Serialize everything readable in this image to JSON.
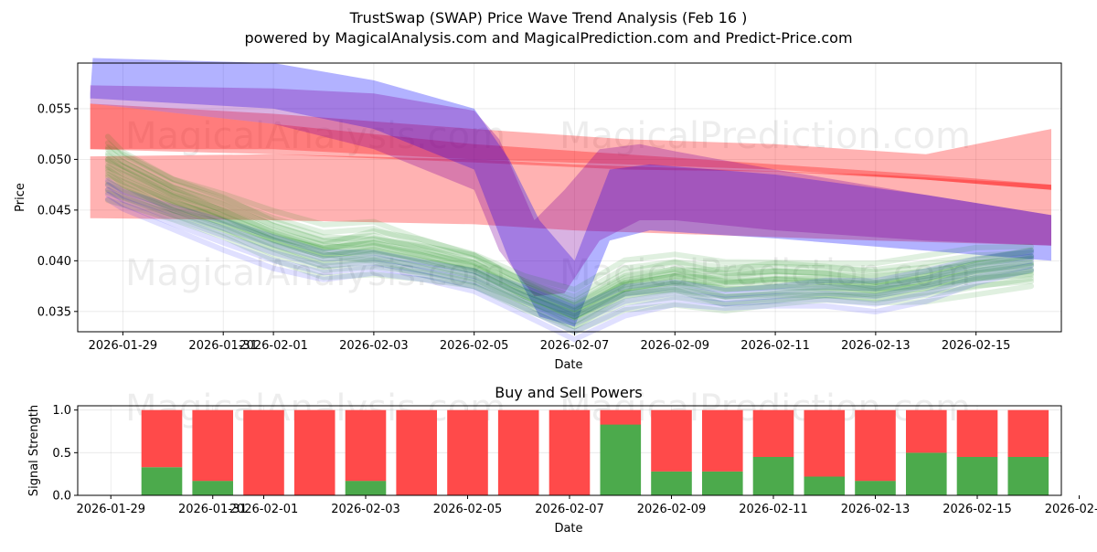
{
  "title": "TrustSwap (SWAP) Price Wave Trend Analysis (Feb 16 )",
  "subtitle": "powered by MagicalAnalysis.com and MagicalPrediction.com and Predict-Price.com",
  "watermarks": [
    "MagicalAnalysis.com",
    "MagicalPrediction.com"
  ],
  "colors": {
    "red": "#ff0000",
    "blue": "#0000ff",
    "green": "#008000",
    "buy": "#4caa4c",
    "sell": "#ff4a4a"
  },
  "chart_data": [
    {
      "type": "area",
      "name": "price-wave-chart",
      "xlabel": "Date",
      "ylabel": "Price",
      "xlim": [
        -0.9,
        18.7
      ],
      "ylim": [
        0.033,
        0.0595
      ],
      "xticks": [
        {
          "x": 0,
          "label": "2026-01-29"
        },
        {
          "x": 2,
          "label": "2026-01-31"
        },
        {
          "x": 3,
          "label": "2026-02-01"
        },
        {
          "x": 5,
          "label": "2026-02-03"
        },
        {
          "x": 7,
          "label": "2026-02-05"
        },
        {
          "x": 9,
          "label": "2026-02-07"
        },
        {
          "x": 11,
          "label": "2026-02-09"
        },
        {
          "x": 13,
          "label": "2026-02-11"
        },
        {
          "x": 15,
          "label": "2026-02-13"
        },
        {
          "x": 17,
          "label": "2026-02-15"
        }
      ],
      "yticks": [
        {
          "y": 0.035,
          "label": "0.035"
        },
        {
          "y": 0.04,
          "label": "0.040"
        },
        {
          "y": 0.045,
          "label": "0.045"
        },
        {
          "y": 0.05,
          "label": "0.050"
        },
        {
          "y": 0.055,
          "label": "0.055"
        }
      ],
      "bands": [
        {
          "name": "red-upper-band",
          "color": "red",
          "x": [
            -0.65,
            3,
            7,
            10,
            13,
            16,
            18.5
          ],
          "upper": [
            0.0555,
            0.0535,
            0.0515,
            0.0505,
            0.0495,
            0.0485,
            0.0475
          ],
          "lower": [
            0.051,
            0.0505,
            0.0497,
            0.049,
            0.0488,
            0.048,
            0.047
          ]
        },
        {
          "name": "red-top-band",
          "color": "red",
          "x": [
            -0.65,
            3,
            7,
            10,
            13,
            16,
            18.5
          ],
          "upper": [
            0.0555,
            0.0545,
            0.053,
            0.052,
            0.0515,
            0.0505,
            0.053
          ],
          "lower": [
            0.051,
            0.051,
            0.05,
            0.0495,
            0.049,
            0.048,
            0.047
          ]
        },
        {
          "name": "red-lower-band",
          "color": "red",
          "x": [
            -0.65,
            3,
            7,
            9,
            12,
            15,
            18.5
          ],
          "upper": [
            0.0503,
            0.0505,
            0.05,
            0.0495,
            0.049,
            0.0485,
            0.0475
          ],
          "lower": [
            0.0442,
            0.044,
            0.0436,
            0.043,
            0.0425,
            0.042,
            0.0415
          ]
        },
        {
          "name": "blue-band",
          "color": "blue",
          "x": [
            -0.65,
            -0.6,
            3,
            5,
            7,
            7.7,
            8.3,
            9,
            9.7,
            10.5,
            13,
            16,
            18.5
          ],
          "upper": [
            0.0565,
            0.06,
            0.0595,
            0.0578,
            0.055,
            0.05,
            0.044,
            0.04,
            0.049,
            0.0495,
            0.0485,
            0.0465,
            0.0445
          ],
          "lower": [
            0.056,
            0.056,
            0.055,
            0.053,
            0.049,
            0.04,
            0.0345,
            0.0335,
            0.042,
            0.043,
            0.0422,
            0.041,
            0.04
          ]
        },
        {
          "name": "purple-band",
          "color": "purple",
          "x": [
            -0.65,
            3,
            5,
            7,
            7.5,
            8.2,
            8.8,
            9.5,
            10.3,
            11,
            13,
            16,
            18.5
          ],
          "upper": [
            0.0573,
            0.057,
            0.0565,
            0.0548,
            0.052,
            0.044,
            0.047,
            0.051,
            0.0515,
            0.0508,
            0.049,
            0.0465,
            0.0445
          ],
          "lower": [
            0.0555,
            0.0535,
            0.051,
            0.047,
            0.041,
            0.0365,
            0.0368,
            0.042,
            0.044,
            0.044,
            0.043,
            0.042,
            0.0415
          ]
        }
      ],
      "series": [
        {
          "name": "wave-green-1",
          "color": "green",
          "x": [
            -0.3,
            0,
            1,
            2,
            3,
            4,
            5,
            6,
            7,
            8,
            9,
            10,
            11,
            12,
            13,
            14,
            15,
            16,
            17,
            18.1
          ],
          "values": [
            0.05,
            0.049,
            0.0465,
            0.045,
            0.043,
            0.0415,
            0.041,
            0.04,
            0.039,
            0.0365,
            0.0345,
            0.0372,
            0.038,
            0.0378,
            0.0382,
            0.038,
            0.0378,
            0.0385,
            0.0392,
            0.0398
          ]
        },
        {
          "name": "wave-green-2",
          "color": "green",
          "x": [
            -0.3,
            0,
            1,
            2,
            3,
            4,
            5,
            6,
            7,
            8,
            9,
            10,
            11,
            12,
            13,
            14,
            15,
            16,
            17,
            18.1
          ],
          "values": [
            0.0485,
            0.0478,
            0.0458,
            0.044,
            0.042,
            0.0405,
            0.0415,
            0.0405,
            0.0392,
            0.037,
            0.0352,
            0.0378,
            0.0385,
            0.0372,
            0.0375,
            0.0377,
            0.037,
            0.0378,
            0.0388,
            0.0395
          ]
        },
        {
          "name": "wave-green-3",
          "color": "green",
          "x": [
            -0.3,
            0,
            1,
            2,
            3,
            4,
            5,
            6,
            7,
            8,
            9,
            10,
            11,
            12,
            13,
            14,
            15,
            16,
            17,
            18.1
          ],
          "values": [
            0.0475,
            0.0468,
            0.045,
            0.0432,
            0.0412,
            0.0398,
            0.0402,
            0.0395,
            0.0385,
            0.0362,
            0.034,
            0.0365,
            0.0372,
            0.0365,
            0.0368,
            0.037,
            0.0368,
            0.0372,
            0.0382,
            0.039
          ]
        },
        {
          "name": "wave-green-4",
          "color": "green",
          "x": [
            -0.3,
            0,
            1,
            2,
            3,
            4,
            5,
            6,
            7,
            8,
            9,
            10,
            11,
            12,
            13,
            14,
            15,
            16,
            17,
            18.1
          ],
          "values": [
            0.051,
            0.0498,
            0.0472,
            0.0455,
            0.0435,
            0.042,
            0.0425,
            0.041,
            0.0398,
            0.0375,
            0.0358,
            0.0385,
            0.0392,
            0.0388,
            0.039,
            0.0388,
            0.0385,
            0.039,
            0.0398,
            0.0402
          ]
        },
        {
          "name": "wave-blue-1",
          "color": "blue",
          "x": [
            -0.3,
            0,
            1,
            2,
            3,
            4,
            5,
            6,
            7,
            8,
            9,
            10,
            11,
            12,
            13,
            14,
            15,
            16,
            17,
            18.1
          ],
          "values": [
            0.047,
            0.046,
            0.0442,
            0.0425,
            0.0408,
            0.0395,
            0.0398,
            0.039,
            0.038,
            0.036,
            0.0338,
            0.036,
            0.0368,
            0.0362,
            0.0365,
            0.0368,
            0.0365,
            0.0375,
            0.039,
            0.04
          ]
        }
      ]
    },
    {
      "type": "bar",
      "name": "buy-sell-chart",
      "title": "Buy and Sell Powers",
      "xlabel": "Date",
      "ylabel": "Signal Strength",
      "xlim": [
        -0.65,
        18.65
      ],
      "ylim": [
        0,
        1.05
      ],
      "xticks": [
        {
          "x": 0,
          "label": "2026-01-29"
        },
        {
          "x": 2,
          "label": "2026-01-31"
        },
        {
          "x": 3,
          "label": "2026-02-01"
        },
        {
          "x": 5,
          "label": "2026-02-03"
        },
        {
          "x": 7,
          "label": "2026-02-05"
        },
        {
          "x": 9,
          "label": "2026-02-07"
        },
        {
          "x": 11,
          "label": "2026-02-09"
        },
        {
          "x": 13,
          "label": "2026-02-11"
        },
        {
          "x": 15,
          "label": "2026-02-13"
        },
        {
          "x": 17,
          "label": "2026-02-15"
        },
        {
          "x": 19,
          "label": "2026-02-17"
        }
      ],
      "yticks": [
        {
          "y": 0,
          "label": "0.0"
        },
        {
          "y": 0.5,
          "label": "0.5"
        },
        {
          "y": 1,
          "label": "1.0"
        }
      ],
      "categories": [
        "2026-01-30",
        "2026-01-31",
        "2026-02-01",
        "2026-02-02",
        "2026-02-03",
        "2026-02-04",
        "2026-02-05",
        "2026-02-06",
        "2026-02-07",
        "2026-02-08",
        "2026-02-09",
        "2026-02-10",
        "2026-02-11",
        "2026-02-12",
        "2026-02-13",
        "2026-02-14",
        "2026-02-15",
        "2026-02-16"
      ],
      "x": [
        1,
        2,
        3,
        4,
        5,
        6,
        7,
        8,
        9,
        10,
        11,
        12,
        13,
        14,
        15,
        16,
        17,
        18
      ],
      "series": [
        {
          "name": "Buy",
          "color": "buy",
          "values": [
            0.33,
            0.17,
            0,
            0,
            0.17,
            0,
            0,
            0,
            0,
            0.83,
            0.28,
            0.28,
            0.45,
            0.22,
            0.17,
            0.5,
            0.45,
            0.45
          ]
        },
        {
          "name": "Sell",
          "color": "sell",
          "values": [
            0.67,
            0.83,
            1,
            1,
            0.83,
            1,
            1,
            1,
            1,
            0.17,
            0.72,
            0.72,
            0.55,
            0.78,
            0.83,
            0.5,
            0.55,
            0.55
          ]
        }
      ]
    }
  ]
}
